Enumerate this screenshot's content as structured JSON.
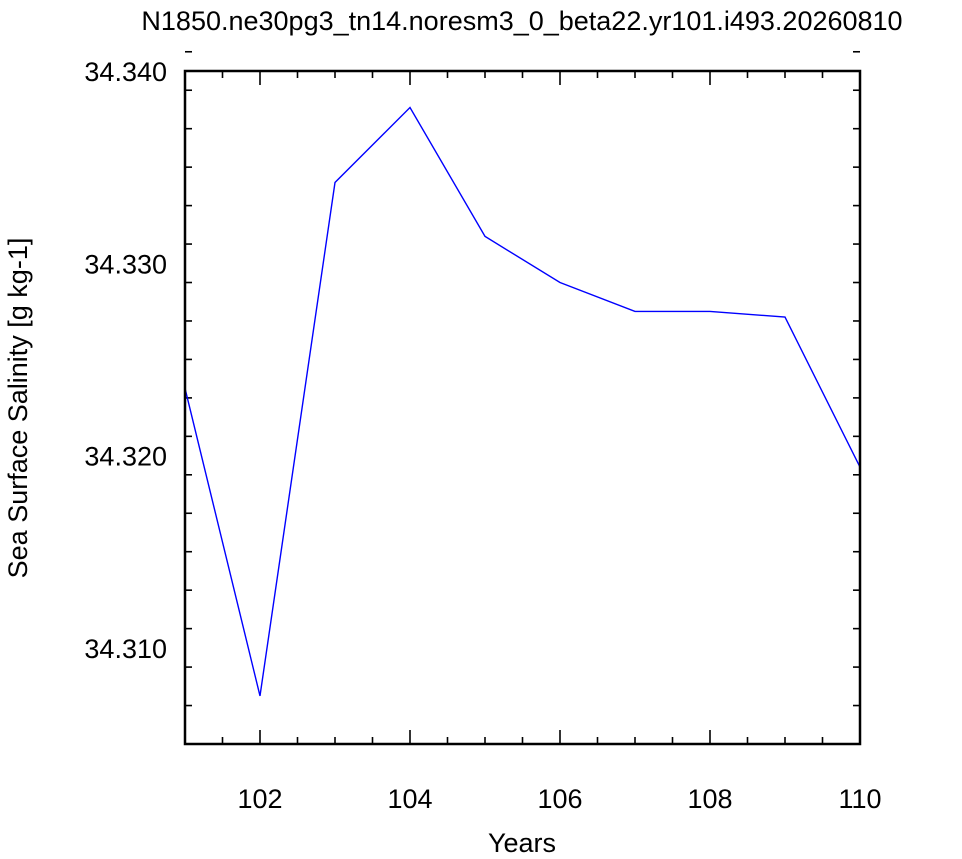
{
  "chart_data": {
    "type": "line",
    "title": "N1850.ne30pg3_tn14.noresm3_0_beta22.yr101.i493.20260810",
    "xlabel": "Years",
    "ylabel": "Sea Surface Salinity [g kg-1]",
    "xlim": [
      101,
      110
    ],
    "ylim": [
      34.305,
      34.34
    ],
    "xticks": [
      102,
      104,
      106,
      108,
      110
    ],
    "yticks": [
      34.31,
      34.32,
      34.33,
      34.34
    ],
    "ytick_labels": [
      "34.310",
      "34.320",
      "34.330",
      "34.340"
    ],
    "grid": false,
    "line_color": "#0000ff",
    "series": [
      {
        "x": [
          101,
          102,
          103,
          104,
          105,
          106,
          107,
          108,
          109,
          110
        ],
        "values": [
          34.3235,
          34.3075,
          34.3342,
          34.3381,
          34.3314,
          34.329,
          34.3275,
          34.3275,
          34.3272,
          34.3194
        ]
      }
    ]
  }
}
